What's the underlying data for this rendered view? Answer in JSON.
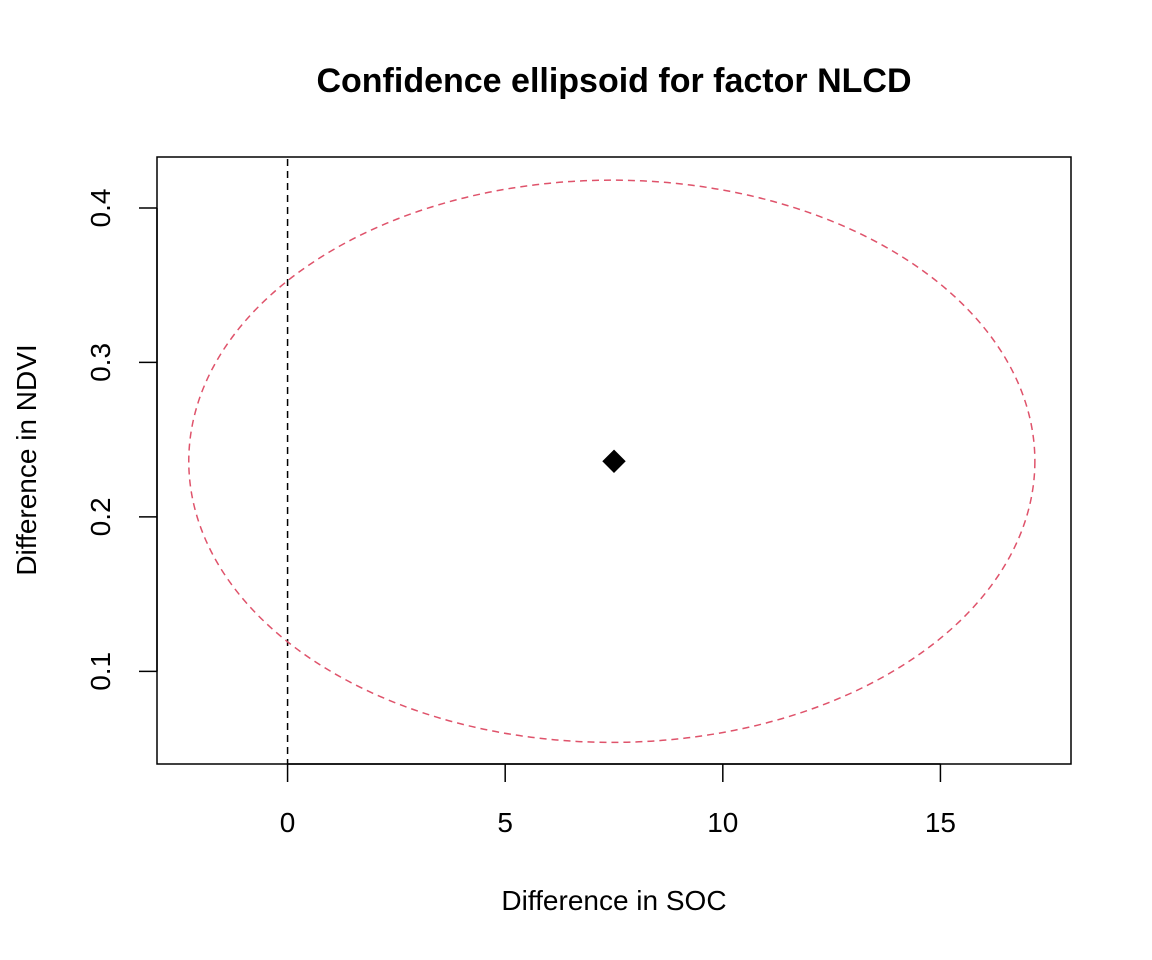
{
  "chart_data": {
    "type": "scatter",
    "title": "Confidence ellipsoid for factor NLCD",
    "xlabel": "Difference in SOC",
    "ylabel": "Difference in NDVI",
    "xlim": [
      -3,
      18
    ],
    "ylim": [
      0.04,
      0.433
    ],
    "x_ticks": [
      0,
      5,
      10,
      15
    ],
    "x_tick_labels": [
      "0",
      "5",
      "10",
      "15"
    ],
    "y_ticks": [
      0.1,
      0.2,
      0.3,
      0.4
    ],
    "y_tick_labels": [
      "0.1",
      "0.2",
      "0.3",
      "0.4"
    ],
    "grid": false,
    "point": {
      "x": 7.5,
      "y": 0.236,
      "marker": "diamond",
      "color": "#000000"
    },
    "ellipse": {
      "center_x": 7.45,
      "center_y": 0.236,
      "half_width_x": 9.72,
      "half_height_y": 0.182,
      "line_style": "dashed",
      "color": "#DF536B"
    },
    "reference_line": {
      "orientation": "vertical",
      "x": 0,
      "line_style": "dashed",
      "color": "#000000"
    }
  }
}
